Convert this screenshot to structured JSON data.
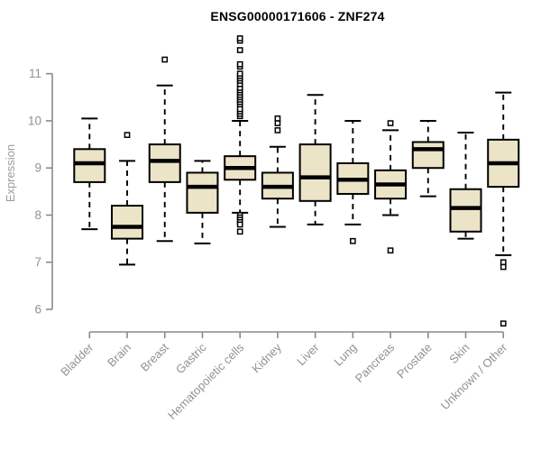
{
  "title": "ENSG00000171606 - ZNF274",
  "colors": {
    "background": "#ffffff",
    "box_fill": "#ece4c7",
    "box_border": "#000000",
    "median": "#000000",
    "whisker": "#000000",
    "outlier_stroke": "#000000",
    "outlier_fill": "#ffffff",
    "axis": "#8a8a8a",
    "tick_label": "#8e9297",
    "axis_label": "#9b9b9b",
    "title": "#000000"
  },
  "chart_data": {
    "type": "boxplot",
    "title": "ENSG00000171606 - ZNF274",
    "xlabel": "",
    "ylabel": "Expression",
    "ylim": [
      6,
      11
    ],
    "yticks": [
      6,
      7,
      8,
      9,
      10,
      11
    ],
    "grid": false,
    "legend": "none",
    "categories": [
      "Bladder",
      "Brain",
      "Breast",
      "Gastric",
      "Hematopoietic cells",
      "Kidney",
      "Liver",
      "Lung",
      "Pancreas",
      "Prostate",
      "Skin",
      "Unknown / Other"
    ],
    "boxes": [
      {
        "label": "Bladder",
        "whisker_low": 7.7,
        "q1": 8.7,
        "median": 9.1,
        "q3": 9.4,
        "whisker_high": 10.05,
        "outliers": []
      },
      {
        "label": "Brain",
        "whisker_low": 6.95,
        "q1": 7.5,
        "median": 7.75,
        "q3": 8.2,
        "whisker_high": 9.15,
        "outliers": [
          9.7
        ]
      },
      {
        "label": "Breast",
        "whisker_low": 7.45,
        "q1": 8.7,
        "median": 9.15,
        "q3": 9.5,
        "whisker_high": 10.75,
        "outliers": [
          11.3
        ]
      },
      {
        "label": "Gastric",
        "whisker_low": 7.4,
        "q1": 8.05,
        "median": 8.6,
        "q3": 8.9,
        "whisker_high": 9.15,
        "outliers": []
      },
      {
        "label": "Hematopoietic cells",
        "whisker_low": 8.05,
        "q1": 8.75,
        "median": 9.0,
        "q3": 9.25,
        "whisker_high": 10.0,
        "outliers": [
          10.1,
          10.15,
          10.2,
          10.25,
          10.35,
          10.4,
          10.45,
          10.5,
          10.55,
          10.6,
          10.65,
          10.7,
          10.78,
          10.85,
          10.9,
          10.95,
          11.0,
          11.15,
          11.2,
          11.5,
          11.7,
          11.75,
          8.0,
          7.95,
          7.9,
          7.85,
          7.8,
          7.65
        ]
      },
      {
        "label": "Kidney",
        "whisker_low": 7.75,
        "q1": 8.35,
        "median": 8.6,
        "q3": 8.9,
        "whisker_high": 9.45,
        "outliers": [
          9.8,
          9.95,
          10.05
        ]
      },
      {
        "label": "Liver",
        "whisker_low": 7.8,
        "q1": 8.3,
        "median": 8.8,
        "q3": 9.5,
        "whisker_high": 10.55,
        "outliers": []
      },
      {
        "label": "Lung",
        "whisker_low": 7.8,
        "q1": 8.45,
        "median": 8.75,
        "q3": 9.1,
        "whisker_high": 10.0,
        "outliers": [
          7.45
        ]
      },
      {
        "label": "Pancreas",
        "whisker_low": 8.0,
        "q1": 8.35,
        "median": 8.65,
        "q3": 8.95,
        "whisker_high": 9.8,
        "outliers": [
          9.95,
          7.25
        ]
      },
      {
        "label": "Prostate",
        "whisker_low": 8.4,
        "q1": 9.0,
        "median": 9.4,
        "q3": 9.55,
        "whisker_high": 10.0,
        "outliers": []
      },
      {
        "label": "Skin",
        "whisker_low": 7.5,
        "q1": 7.65,
        "median": 8.15,
        "q3": 8.55,
        "whisker_high": 9.75,
        "outliers": []
      },
      {
        "label": "Unknown / Other",
        "whisker_low": 7.15,
        "q1": 8.6,
        "median": 9.1,
        "q3": 9.6,
        "whisker_high": 10.6,
        "outliers": [
          7.0,
          6.9,
          5.7
        ]
      }
    ]
  }
}
